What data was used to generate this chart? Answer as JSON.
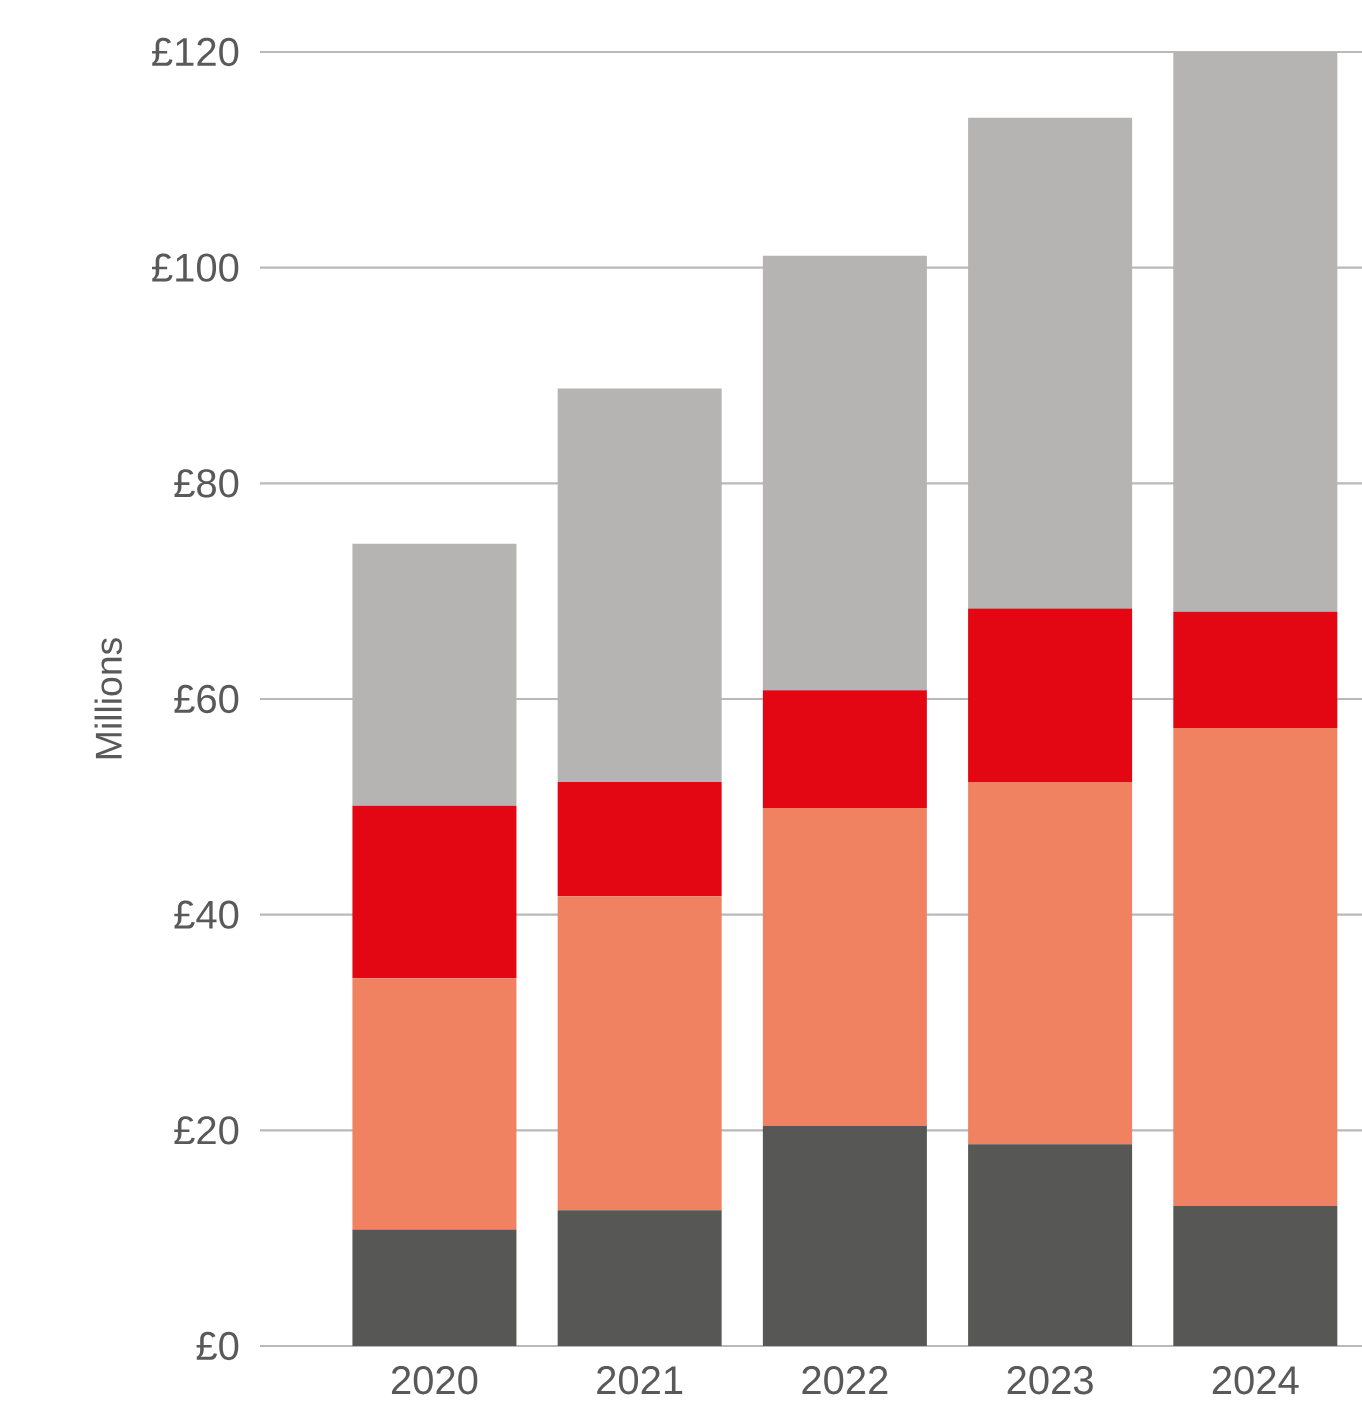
{
  "chart_data": {
    "type": "bar",
    "stacked": true,
    "ylabel": "Millions",
    "categories": [
      "2020",
      "2021",
      "2022",
      "2023",
      "2024"
    ],
    "series": [
      {
        "color": "#575755",
        "values": [
          10.8,
          12.6,
          20.4,
          18.7,
          13.0
        ]
      },
      {
        "color": "#f08262",
        "values": [
          23.3,
          29.1,
          29.5,
          33.6,
          44.3
        ]
      },
      {
        "color": "#e30613",
        "values": [
          16.0,
          10.6,
          10.9,
          16.1,
          10.8
        ]
      },
      {
        "color": "#b5b4b2",
        "values": [
          24.3,
          36.5,
          40.3,
          45.5,
          51.9
        ]
      }
    ],
    "ylim": [
      0,
      120
    ],
    "yticks": [
      {
        "value": 0,
        "label": "£0"
      },
      {
        "value": 20,
        "label": "£20"
      },
      {
        "value": 40,
        "label": "£40"
      },
      {
        "value": 60,
        "label": "£60"
      },
      {
        "value": 80,
        "label": "£80"
      },
      {
        "value": 100,
        "label": "£100"
      },
      {
        "value": 120,
        "label": "£120"
      }
    ],
    "grid": "y"
  }
}
